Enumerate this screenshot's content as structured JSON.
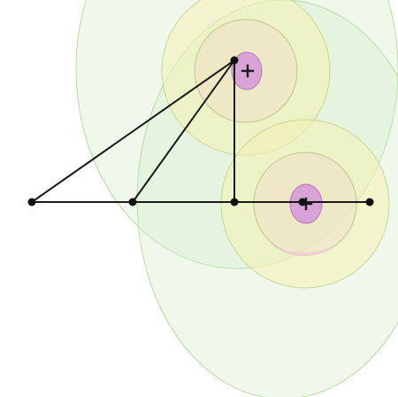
{
  "colors": {
    "outer_halo": "#d4ecc6",
    "outer_halo_stroke": "#b7dca4",
    "mid_ring": "#f3f0b4",
    "mid_ring_stroke": "#c9d68f",
    "inner_ring": "#f0dcc8",
    "inner_ring_stroke": "#b9c78a",
    "charge": "#d9a3d8",
    "charge_stroke": "#b874b8",
    "pink_tint": "#f2c9d8",
    "line": "#1a1a1a",
    "point": "#111111"
  },
  "icons": {
    "charge_symbol": "plus-icon",
    "vertex_marker": "dot-icon"
  },
  "charges": [
    {
      "name": "charge-top",
      "sign": "+"
    },
    {
      "name": "charge-right",
      "sign": "+"
    }
  ]
}
